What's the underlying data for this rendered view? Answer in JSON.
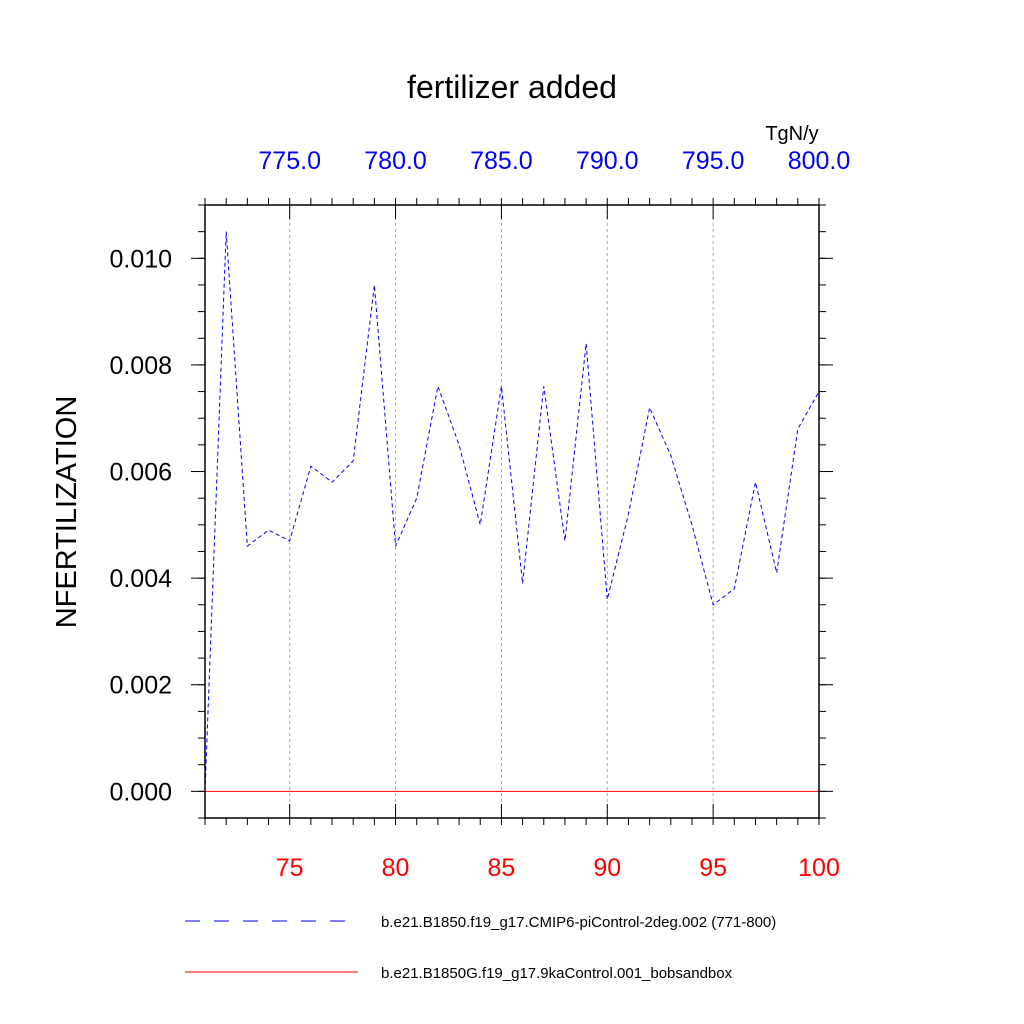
{
  "chart_data": {
    "type": "line",
    "title": "fertilizer added",
    "units": "TgN/y",
    "ylabel": "NFERTILIZATION",
    "ylim": [
      -0.0005,
      0.011
    ],
    "y_ticks": [
      "0.000",
      "0.002",
      "0.004",
      "0.006",
      "0.008",
      "0.010"
    ],
    "x_bottom": {
      "lim": [
        71,
        100
      ],
      "ticks": [
        "75",
        "80",
        "85",
        "90",
        "95",
        "100"
      ],
      "color": "#ff0000"
    },
    "x_top": {
      "lim": [
        771,
        800
      ],
      "ticks": [
        "775.0",
        "780.0",
        "785.0",
        "790.0",
        "795.0",
        "800.0"
      ],
      "color": "#0000ff"
    },
    "grid": "vertical dashed",
    "series": [
      {
        "name": "b.e21.B1850.f19_g17.CMIP6-piControl-2deg.002 (771-800)",
        "color": "#0000ff",
        "style": "dashed",
        "x": [
          771,
          772,
          773,
          774,
          775,
          776,
          777,
          778,
          779,
          780,
          781,
          782,
          783,
          784,
          785,
          786,
          787,
          788,
          789,
          790,
          791,
          792,
          793,
          794,
          795,
          796,
          797,
          798,
          799,
          800
        ],
        "values": [
          0.0,
          0.0105,
          0.0046,
          0.0049,
          0.0047,
          0.0061,
          0.0058,
          0.0062,
          0.0095,
          0.0046,
          0.0055,
          0.0076,
          0.0065,
          0.005,
          0.0076,
          0.0039,
          0.0076,
          0.0047,
          0.0084,
          0.0036,
          0.0052,
          0.0072,
          0.0063,
          0.005,
          0.0035,
          0.0038,
          0.0058,
          0.0041,
          0.0068,
          0.0075
        ]
      },
      {
        "name": "b.e21.B1850G.f19_g17.9kaControl.001_bobsandbox",
        "color": "#ff0000",
        "style": "solid",
        "x": [
          71,
          100
        ],
        "values": [
          0.0,
          0.0
        ]
      }
    ]
  }
}
